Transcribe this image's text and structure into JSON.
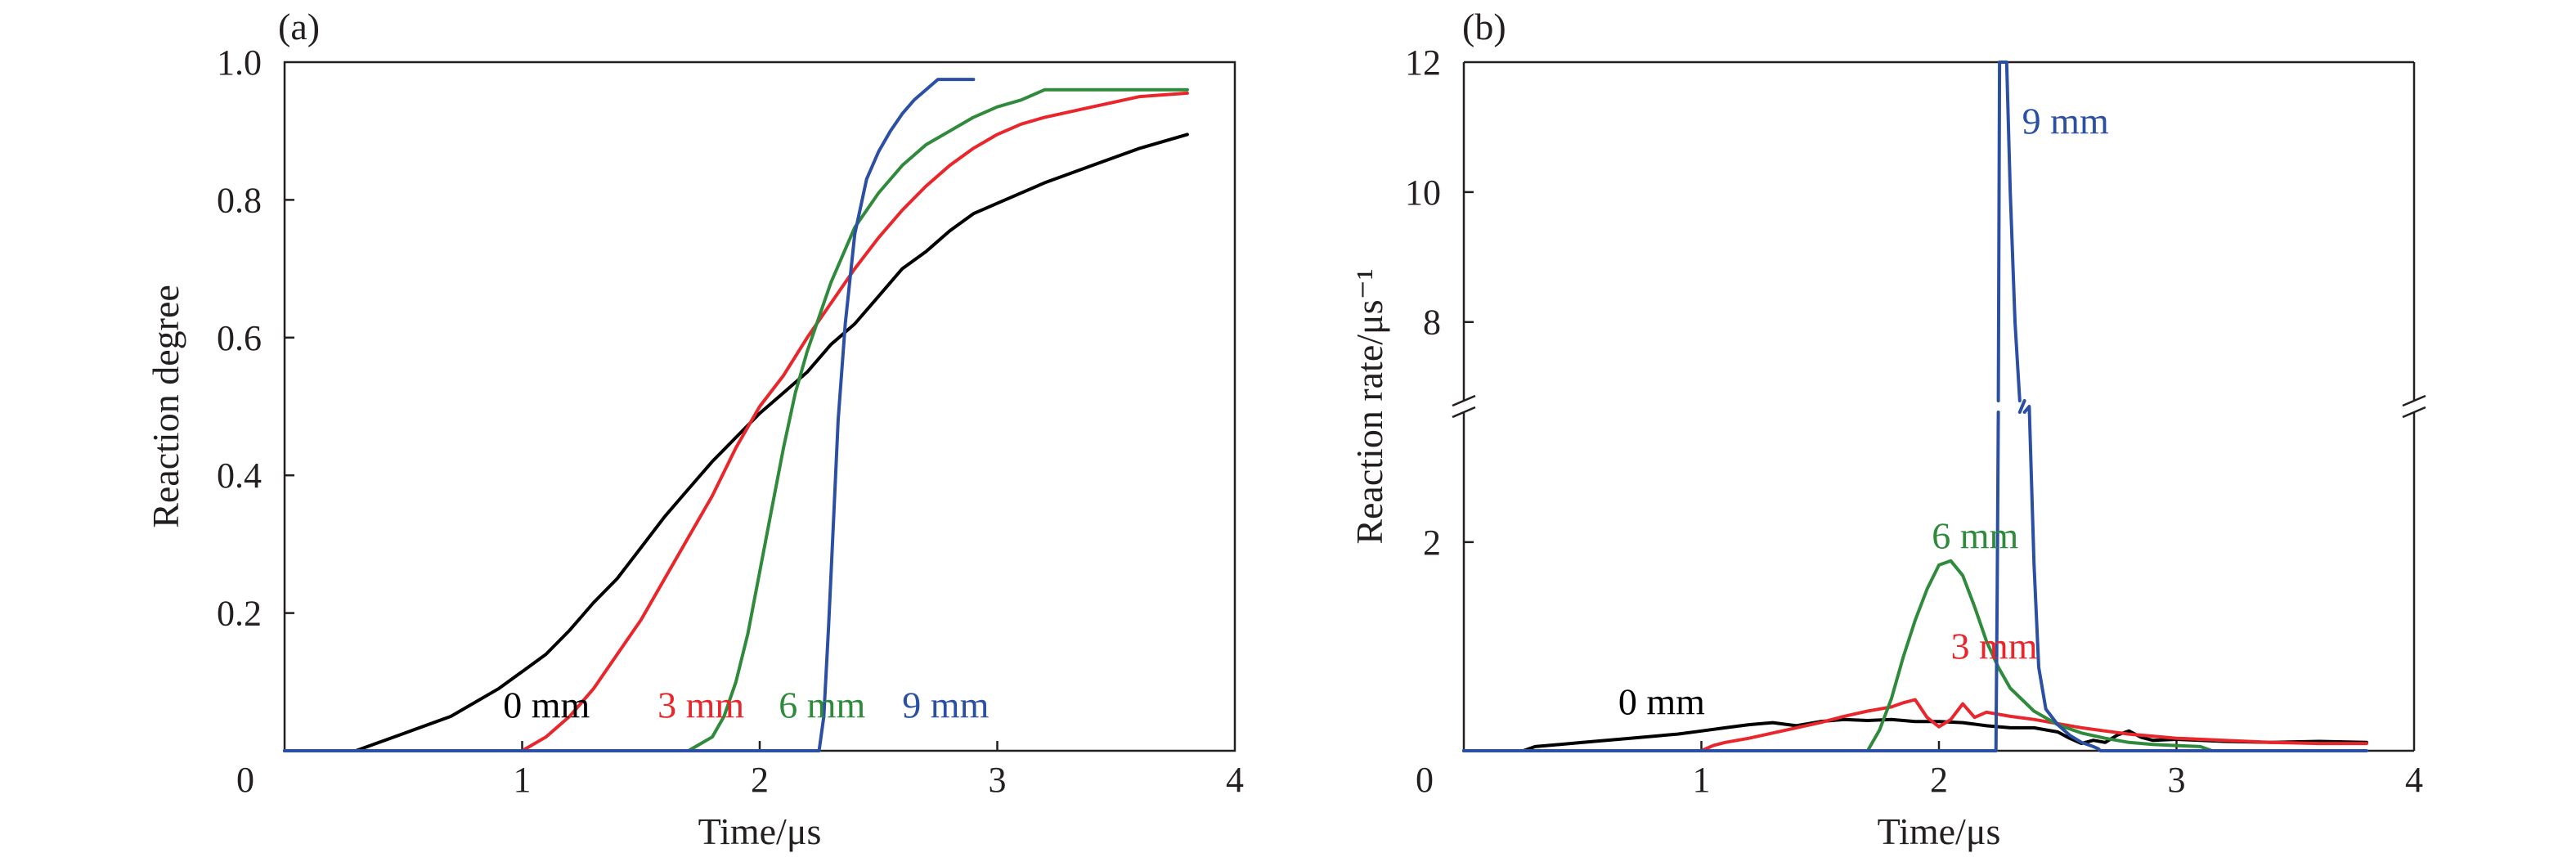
{
  "chart_data": [
    {
      "panel": "(a)",
      "type": "line",
      "xlabel": "Time/μs",
      "ylabel": "Reaction degree",
      "xlim": [
        0,
        4
      ],
      "ylim": [
        0,
        1
      ],
      "x_ticks": [
        "0",
        "1",
        "2",
        "3",
        "4"
      ],
      "x_tick_values": [
        0,
        1,
        2,
        3,
        4
      ],
      "y_ticks": [
        "0.2",
        "0.4",
        "0.6",
        "0.8",
        "1.0"
      ],
      "y_tick_values": [
        0.2,
        0.4,
        0.6,
        0.8,
        1.0
      ],
      "series": [
        {
          "name": "0 mm",
          "color": "#000000",
          "x": [
            0,
            0.3,
            0.5,
            0.7,
            0.9,
            1.0,
            1.1,
            1.2,
            1.3,
            1.4,
            1.5,
            1.6,
            1.7,
            1.8,
            1.9,
            2.0,
            2.1,
            2.2,
            2.3,
            2.4,
            2.5,
            2.6,
            2.7,
            2.8,
            2.9,
            3.0,
            3.2,
            3.4,
            3.6,
            3.8
          ],
          "y": [
            0,
            0,
            0.025,
            0.05,
            0.09,
            0.115,
            0.14,
            0.175,
            0.215,
            0.25,
            0.295,
            0.34,
            0.38,
            0.42,
            0.455,
            0.49,
            0.52,
            0.55,
            0.59,
            0.62,
            0.66,
            0.7,
            0.725,
            0.755,
            0.78,
            0.795,
            0.825,
            0.85,
            0.875,
            0.895
          ]
        },
        {
          "name": "3 mm",
          "color": "#e8262b",
          "x": [
            0,
            1.0,
            1.1,
            1.2,
            1.3,
            1.4,
            1.5,
            1.6,
            1.7,
            1.8,
            1.9,
            2.0,
            2.1,
            2.2,
            2.3,
            2.4,
            2.5,
            2.6,
            2.7,
            2.8,
            2.9,
            3.0,
            3.1,
            3.2,
            3.4,
            3.6,
            3.8
          ],
          "y": [
            0,
            0,
            0.02,
            0.05,
            0.09,
            0.14,
            0.19,
            0.25,
            0.31,
            0.37,
            0.44,
            0.5,
            0.545,
            0.6,
            0.65,
            0.7,
            0.745,
            0.785,
            0.82,
            0.85,
            0.875,
            0.895,
            0.91,
            0.92,
            0.935,
            0.95,
            0.955
          ]
        },
        {
          "name": "6 mm",
          "color": "#2f8a3b",
          "x": [
            0,
            1.7,
            1.8,
            1.85,
            1.9,
            1.95,
            2.0,
            2.05,
            2.1,
            2.15,
            2.2,
            2.3,
            2.4,
            2.5,
            2.6,
            2.7,
            2.8,
            2.9,
            3.0,
            3.1,
            3.2,
            3.8
          ],
          "y": [
            0,
            0,
            0.02,
            0.05,
            0.1,
            0.17,
            0.26,
            0.35,
            0.44,
            0.52,
            0.58,
            0.68,
            0.76,
            0.81,
            0.85,
            0.88,
            0.9,
            0.92,
            0.935,
            0.945,
            0.96,
            0.96
          ]
        },
        {
          "name": "9 mm",
          "color": "#2a4fa3",
          "x": [
            0,
            2.25,
            2.27,
            2.29,
            2.31,
            2.33,
            2.36,
            2.4,
            2.45,
            2.5,
            2.55,
            2.6,
            2.65,
            2.7,
            2.75,
            2.8,
            2.9
          ],
          "y": [
            0,
            0,
            0.05,
            0.18,
            0.33,
            0.48,
            0.62,
            0.75,
            0.83,
            0.87,
            0.9,
            0.925,
            0.945,
            0.96,
            0.975,
            0.975,
            0.975
          ]
        }
      ],
      "annotations": [
        {
          "text": "0 mm",
          "color": "#000000",
          "x": 0.92,
          "y": 0.048
        },
        {
          "text": "3 mm",
          "color": "#e8262b",
          "x": 1.57,
          "y": 0.048
        },
        {
          "text": "6 mm",
          "color": "#2f8a3b",
          "x": 2.08,
          "y": 0.048
        },
        {
          "text": "9 mm",
          "color": "#2a4fa3",
          "x": 2.6,
          "y": 0.048
        }
      ]
    },
    {
      "panel": "(b)",
      "type": "line",
      "xlabel": "Time/μs",
      "ylabel": "Reaction rate/μs⁻¹",
      "xlim": [
        0,
        4
      ],
      "y_axis": "broken",
      "ylim_lower": [
        0,
        3.3
      ],
      "ylim_upper": [
        6.7,
        12
      ],
      "x_ticks": [
        "0",
        "1",
        "2",
        "3",
        "4"
      ],
      "x_tick_values": [
        0,
        1,
        2,
        3,
        4
      ],
      "y_ticks": [
        "2",
        "8",
        "10",
        "12"
      ],
      "y_tick_values": [
        2,
        8,
        10,
        12
      ],
      "series": [
        {
          "name": "0 mm",
          "color": "#000000",
          "x": [
            0,
            0.25,
            0.3,
            0.5,
            0.7,
            0.9,
            1.0,
            1.1,
            1.2,
            1.3,
            1.4,
            1.5,
            1.6,
            1.7,
            1.8,
            1.9,
            2.0,
            2.1,
            2.2,
            2.3,
            2.4,
            2.5,
            2.55,
            2.6,
            2.65,
            2.7,
            2.75,
            2.8,
            2.85,
            2.9,
            3.0,
            3.2,
            3.4,
            3.6,
            3.8
          ],
          "y": [
            0,
            0,
            0.04,
            0.08,
            0.12,
            0.16,
            0.19,
            0.22,
            0.25,
            0.27,
            0.24,
            0.28,
            0.3,
            0.29,
            0.3,
            0.28,
            0.28,
            0.27,
            0.24,
            0.22,
            0.22,
            0.18,
            0.12,
            0.07,
            0.1,
            0.08,
            0.15,
            0.19,
            0.13,
            0.1,
            0.11,
            0.09,
            0.08,
            0.09,
            0.08
          ]
        },
        {
          "name": "3 mm",
          "color": "#e8262b",
          "x": [
            0,
            1.0,
            1.05,
            1.1,
            1.2,
            1.3,
            1.4,
            1.5,
            1.6,
            1.7,
            1.8,
            1.85,
            1.9,
            1.95,
            2.0,
            2.05,
            2.1,
            2.15,
            2.2,
            2.3,
            2.4,
            2.5,
            2.6,
            2.7,
            2.8,
            2.9,
            3.0,
            3.2,
            3.4,
            3.6,
            3.8
          ],
          "y": [
            0,
            0,
            0.05,
            0.08,
            0.12,
            0.17,
            0.22,
            0.27,
            0.33,
            0.38,
            0.42,
            0.46,
            0.49,
            0.32,
            0.23,
            0.3,
            0.45,
            0.32,
            0.37,
            0.33,
            0.3,
            0.26,
            0.22,
            0.19,
            0.16,
            0.14,
            0.12,
            0.1,
            0.08,
            0.07,
            0.07
          ]
        },
        {
          "name": "6 mm",
          "color": "#2f8a3b",
          "x": [
            0,
            1.7,
            1.75,
            1.8,
            1.85,
            1.9,
            1.95,
            2.0,
            2.05,
            2.1,
            2.15,
            2.2,
            2.25,
            2.3,
            2.4,
            2.5,
            2.6,
            2.7,
            2.8,
            2.9,
            3.0,
            3.1,
            3.15
          ],
          "y": [
            0,
            0,
            0.2,
            0.5,
            0.9,
            1.25,
            1.55,
            1.78,
            1.82,
            1.68,
            1.38,
            1.05,
            0.8,
            0.6,
            0.38,
            0.25,
            0.17,
            0.12,
            0.08,
            0.06,
            0.05,
            0.04,
            0
          ]
        },
        {
          "name": "9 mm",
          "color": "#2a4fa3",
          "x": [
            0,
            2.24,
            2.245,
            2.25,
            2.255,
            2.27,
            2.285,
            2.3,
            2.32,
            2.34,
            2.36,
            2.38,
            2.4,
            2.42,
            2.45,
            2.5,
            2.55,
            2.6,
            2.65,
            2.67,
            2.68,
            2.7,
            3.8
          ],
          "y": [
            0,
            0,
            1.5,
            4.0,
            12.0,
            12.0,
            12.0,
            10.0,
            8.0,
            6.0,
            4.5,
            3.3,
            1.8,
            0.8,
            0.4,
            0.25,
            0.15,
            0.08,
            0.04,
            0.02,
            0,
            0,
            0
          ]
        }
      ],
      "annotations": [
        {
          "text": "9 mm",
          "color": "#2a4fa3",
          "x": 2.35,
          "y": 10.9
        },
        {
          "text": "6 mm",
          "color": "#2f8a3b",
          "x": 1.97,
          "y": 1.94
        },
        {
          "text": "3 mm",
          "color": "#e8262b",
          "x": 2.05,
          "y": 0.88
        },
        {
          "text": "0 mm",
          "color": "#000000",
          "x": 0.65,
          "y": 0.35
        }
      ]
    }
  ]
}
